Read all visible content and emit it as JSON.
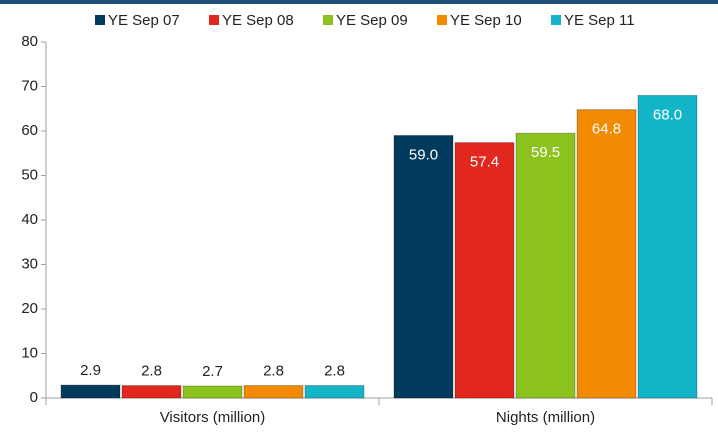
{
  "chart_data": {
    "type": "bar",
    "categories": [
      "Visitors (million)",
      "Nights (million)"
    ],
    "series": [
      {
        "name": "YE Sep 07",
        "color": "#003a5c",
        "values": [
          2.9,
          59.0
        ],
        "value_labels": [
          "2.9",
          "59.0"
        ]
      },
      {
        "name": "YE Sep 08",
        "color": "#e2271e",
        "values": [
          2.8,
          57.4
        ],
        "value_labels": [
          "2.8",
          "57.4"
        ]
      },
      {
        "name": "YE Sep 09",
        "color": "#8cc21e",
        "values": [
          2.7,
          59.5
        ],
        "value_labels": [
          "2.7",
          "59.5"
        ]
      },
      {
        "name": "YE Sep 10",
        "color": "#f18a00",
        "values": [
          2.8,
          64.8
        ],
        "value_labels": [
          "2.8",
          "64.8"
        ]
      },
      {
        "name": "YE Sep 11",
        "color": "#14b4c9",
        "values": [
          2.8,
          68.0
        ],
        "value_labels": [
          "2.8",
          "68.0"
        ]
      }
    ],
    "ylim": [
      0,
      80
    ],
    "yticks": [
      0,
      10,
      20,
      30,
      40,
      50,
      60,
      70,
      80
    ],
    "grid": false
  }
}
